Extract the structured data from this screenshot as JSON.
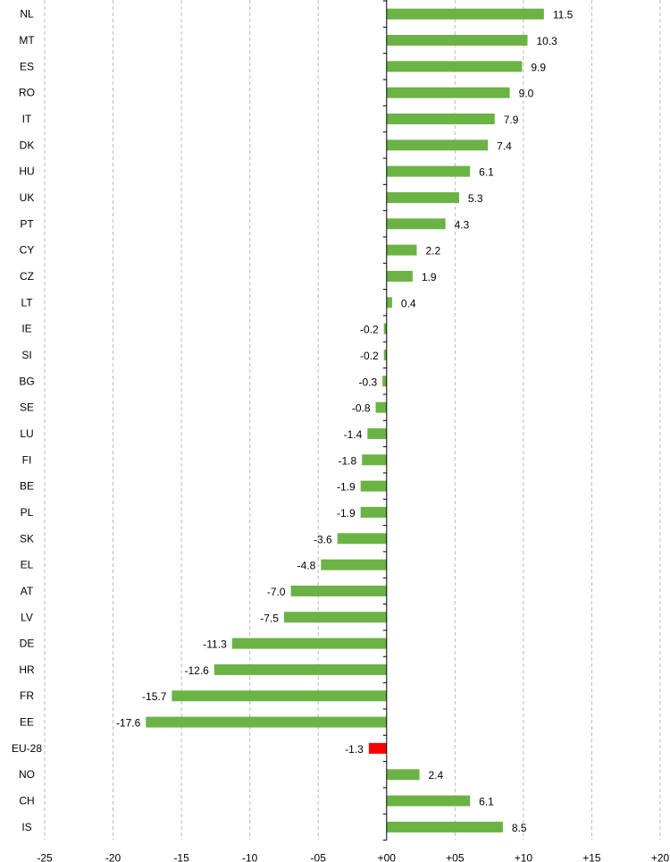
{
  "chart_data": {
    "type": "bar",
    "orientation": "horizontal",
    "title": "",
    "xlabel": "",
    "ylabel": "",
    "xlim": [
      -25,
      20
    ],
    "x_ticks": [
      -25,
      -20,
      -15,
      -10,
      -5,
      0,
      5,
      10,
      15,
      20
    ],
    "x_tick_labels": [
      "-25",
      "-20",
      "-15",
      "-10",
      "-05",
      "+00",
      "+05",
      "+10",
      "+15",
      "+20"
    ],
    "grid": "vertical dashed",
    "categories": [
      "NL",
      "MT",
      "ES",
      "RO",
      "IT",
      "DK",
      "HU",
      "UK",
      "PT",
      "CY",
      "CZ",
      "LT",
      "IE",
      "SI",
      "BG",
      "SE",
      "LU",
      "FI",
      "BE",
      "PL",
      "SK",
      "EL",
      "AT",
      "LV",
      "DE",
      "HR",
      "FR",
      "EE",
      "EU-28",
      "NO",
      "CH",
      "IS"
    ],
    "values": [
      11.5,
      10.3,
      9.9,
      9.0,
      7.9,
      7.4,
      6.1,
      5.3,
      4.3,
      2.2,
      1.9,
      0.4,
      -0.2,
      -0.2,
      -0.3,
      -0.8,
      -1.4,
      -1.8,
      -1.9,
      -1.9,
      -3.6,
      -4.8,
      -7.0,
      -7.5,
      -11.3,
      -12.6,
      -15.7,
      -17.6,
      -1.3,
      2.4,
      6.1,
      8.5
    ],
    "data_labels": [
      "11.5",
      "10.3",
      "9.9",
      "9.0",
      "7.9",
      "7.4",
      "6.1",
      "5.3",
      "4.3",
      "2.2",
      "1.9",
      "0.4",
      "-0.2",
      "-0.2",
      "-0.3",
      "-0.8",
      "-1.4",
      "-1.8",
      "-1.9",
      "-1.9",
      "-3.6",
      "-4.8",
      "-7.0",
      "-7.5",
      "-11.3",
      "-12.6",
      "-15.7",
      "-17.6",
      "-1.3",
      "2.4",
      "6.1",
      "8.5"
    ],
    "colors": {
      "default": "#6ab344",
      "highlight": "#ff0000"
    },
    "highlight_category": "EU-28"
  }
}
